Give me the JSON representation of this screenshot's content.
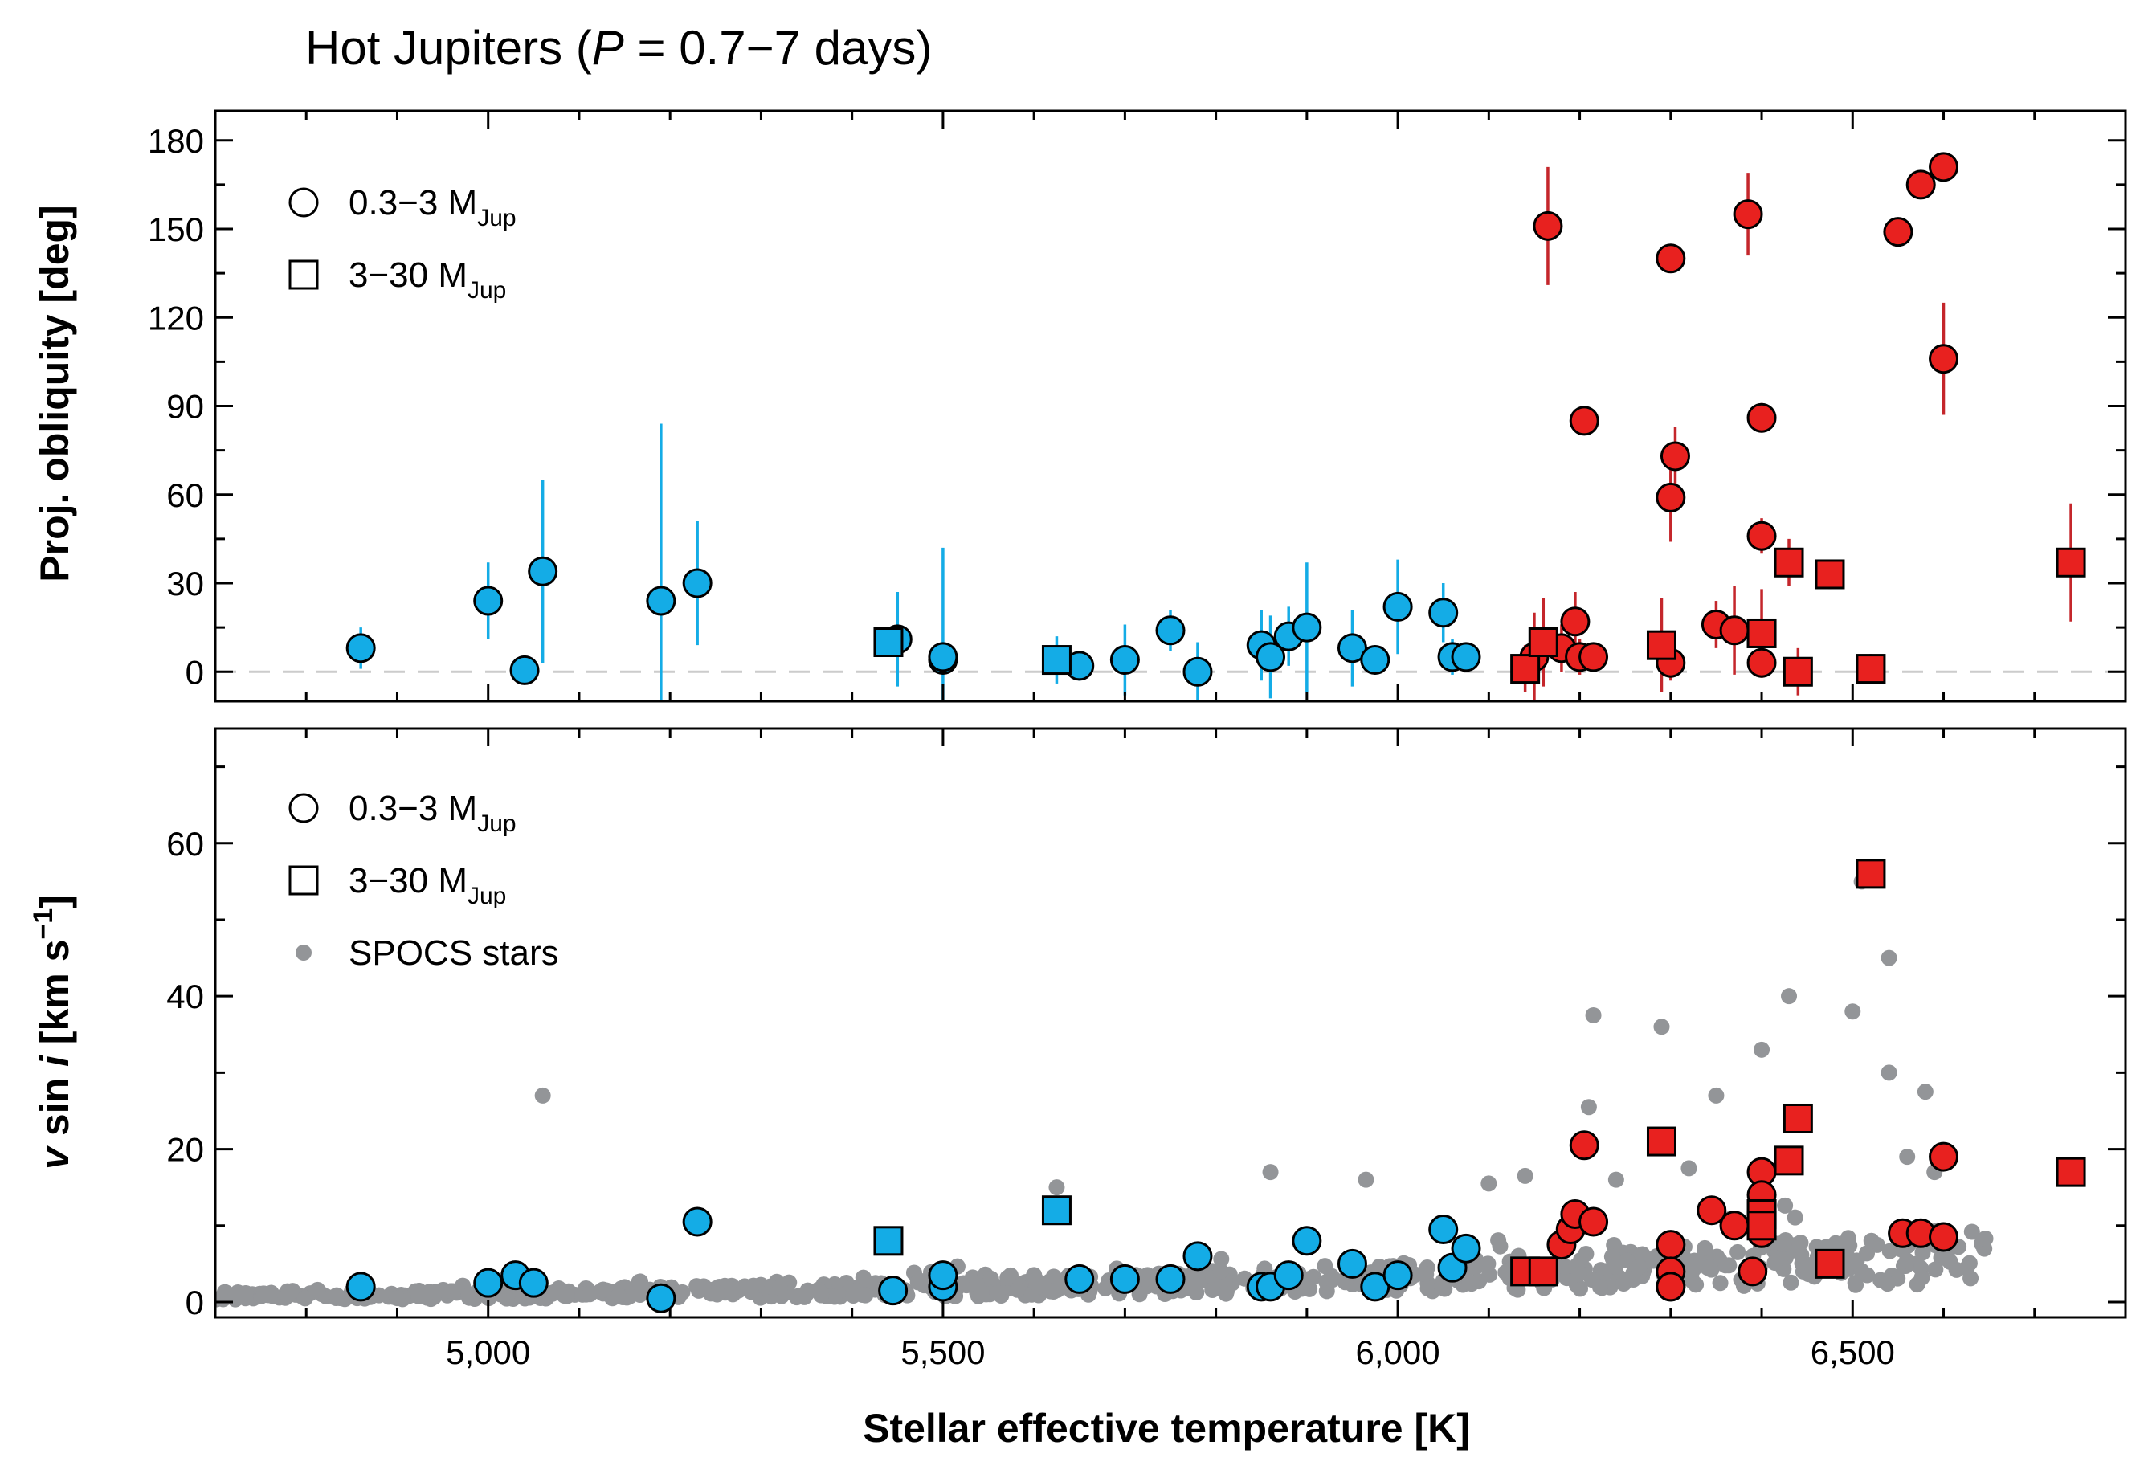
{
  "title": "Hot Jupiters (P = 0.7−7 days)",
  "title_parts": {
    "pre": "Hot Jupiters (",
    "var": "P",
    "post": " = 0.7−7 days)"
  },
  "colors": {
    "aligned": "#14ace6",
    "misaligned": "#e8211f",
    "aligned_err": "#14ace6",
    "misaligned_err": "#c4262b",
    "spocs": "#939598",
    "zero_line": "#cccccc",
    "frame": "#000000"
  },
  "legend_top": [
    {
      "marker": "circle",
      "label": "0.3−3 M",
      "sub": "Jup"
    },
    {
      "marker": "square",
      "label": "3−30 M",
      "sub": "Jup"
    }
  ],
  "legend_bottom": [
    {
      "marker": "circle",
      "label": "0.3−3 M",
      "sub": "Jup"
    },
    {
      "marker": "square",
      "label": "3−30 M",
      "sub": "Jup"
    },
    {
      "marker": "dot",
      "label": "SPOCS stars",
      "sub": ""
    }
  ],
  "chart_data": [
    {
      "type": "scatter",
      "panel": "top",
      "title": "Hot Jupiters (P = 0.7−7 days)",
      "xlabel": "",
      "ylabel": "Proj. obliquity [deg]",
      "xlim": [
        4700,
        6800
      ],
      "ylim": [
        -10,
        190
      ],
      "yticks": [
        0,
        30,
        60,
        90,
        120,
        150,
        180
      ],
      "ytick_labels": [
        "0",
        "30",
        "60",
        "90",
        "120",
        "150",
        "180"
      ],
      "xticks": [
        5000,
        5500,
        6000,
        6500
      ],
      "reference_line": 0,
      "series": [
        {
          "name": "0.3−3 M_Jup",
          "marker": "circle",
          "points": [
            [
              4860,
              8,
              7
            ],
            [
              5000,
              24,
              13
            ],
            [
              5040,
              0.5,
              3
            ],
            [
              5060,
              34,
              31
            ],
            [
              5190,
              24,
              60
            ],
            [
              5230,
              30,
              21
            ],
            [
              5450,
              11,
              16
            ],
            [
              5500,
              4,
              38
            ],
            [
              5500,
              5,
              5
            ],
            [
              5650,
              2,
              5
            ],
            [
              5700,
              4,
              12
            ],
            [
              5750,
              14,
              7
            ],
            [
              5780,
              0,
              10
            ],
            [
              5850,
              9,
              12
            ],
            [
              5860,
              5,
              14
            ],
            [
              5880,
              12,
              10
            ],
            [
              5900,
              15,
              22
            ],
            [
              5950,
              8,
              13
            ],
            [
              5975,
              4,
              5
            ],
            [
              6000,
              22,
              16
            ],
            [
              6050,
              20,
              10
            ],
            [
              6060,
              5,
              6
            ],
            [
              6075,
              5,
              3
            ],
            [
              6150,
              5,
              15
            ],
            [
              6165,
              151,
              20
            ],
            [
              6180,
              8,
              8
            ],
            [
              6195,
              17,
              10
            ],
            [
              6200,
              5,
              6
            ],
            [
              6205,
              85,
              4
            ],
            [
              6215,
              5,
              5
            ],
            [
              6300,
              140,
              3
            ],
            [
              6300,
              59,
              15
            ],
            [
              6300,
              3,
              6
            ],
            [
              6305,
              73,
              10
            ],
            [
              6350,
              16,
              8
            ],
            [
              6370,
              14,
              15
            ],
            [
              6385,
              155,
              14
            ],
            [
              6400,
              86,
              5
            ],
            [
              6400,
              46,
              6
            ],
            [
              6400,
              3,
              5
            ],
            [
              6550,
              149,
              3
            ],
            [
              6575,
              165,
              4
            ],
            [
              6600,
              171,
              3
            ],
            [
              6600,
              106,
              19
            ]
          ]
        },
        {
          "name": "3−30 M_Jup",
          "marker": "square",
          "points": [
            [
              5440,
              10,
              2
            ],
            [
              5625,
              4,
              8
            ],
            [
              6140,
              1,
              8
            ],
            [
              6160,
              10,
              15
            ],
            [
              6290,
              9,
              16
            ],
            [
              6400,
              13,
              15
            ],
            [
              6430,
              37,
              8
            ],
            [
              6440,
              0,
              8
            ],
            [
              6475,
              33,
              5
            ],
            [
              6520,
              1,
              5
            ],
            [
              6740,
              37,
              20
            ]
          ]
        }
      ],
      "coloring": "misaligned (red) when Teff > ~6100 K, aligned (blue) otherwise"
    },
    {
      "type": "scatter",
      "panel": "bottom",
      "xlabel": "Stellar effective temperature [K]",
      "ylabel": "v sin i [km s⁻¹]",
      "xlim": [
        4700,
        6800
      ],
      "ylim": [
        -2,
        75
      ],
      "yticks": [
        0,
        20,
        40,
        60
      ],
      "ytick_labels": [
        "0",
        "20",
        "40",
        "60"
      ],
      "xticks": [
        5000,
        5500,
        6000,
        6500
      ],
      "xtick_labels": [
        "5,000",
        "5,500",
        "6,000",
        "6,500"
      ],
      "series": [
        {
          "name": "0.3−3 M_Jup",
          "marker": "circle",
          "points": [
            [
              4860,
              2
            ],
            [
              5000,
              2.5
            ],
            [
              5030,
              3.5
            ],
            [
              5050,
              2.5
            ],
            [
              5190,
              0.5
            ],
            [
              5230,
              10.5
            ],
            [
              5445,
              1.5
            ],
            [
              5500,
              2
            ],
            [
              5500,
              3.5
            ],
            [
              5650,
              3
            ],
            [
              5700,
              3
            ],
            [
              5750,
              3
            ],
            [
              5780,
              6
            ],
            [
              5850,
              2
            ],
            [
              5860,
              2
            ],
            [
              5880,
              3.5
            ],
            [
              5900,
              8
            ],
            [
              5950,
              5
            ],
            [
              5975,
              2
            ],
            [
              6000,
              3.5
            ],
            [
              6050,
              9.5
            ],
            [
              6060,
              4.5
            ],
            [
              6075,
              7
            ],
            [
              6180,
              7.5
            ],
            [
              6190,
              9.5
            ],
            [
              6195,
              11.5
            ],
            [
              6205,
              20.5
            ],
            [
              6215,
              10.5
            ],
            [
              6300,
              7.5
            ],
            [
              6300,
              4
            ],
            [
              6300,
              2
            ],
            [
              6300,
              2
            ],
            [
              6345,
              12
            ],
            [
              6370,
              10
            ],
            [
              6390,
              4
            ],
            [
              6400,
              17
            ],
            [
              6400,
              14
            ],
            [
              6400,
              9
            ],
            [
              6555,
              9
            ],
            [
              6575,
              9
            ],
            [
              6600,
              19
            ],
            [
              6600,
              8.5
            ]
          ]
        },
        {
          "name": "3−30 M_Jup",
          "marker": "square",
          "points": [
            [
              5440,
              8
            ],
            [
              5625,
              12
            ],
            [
              6140,
              4
            ],
            [
              6160,
              4
            ],
            [
              6290,
              21
            ],
            [
              6400,
              11.5
            ],
            [
              6400,
              10
            ],
            [
              6430,
              18.5
            ],
            [
              6440,
              24
            ],
            [
              6475,
              5
            ],
            [
              6520,
              56
            ],
            [
              6740,
              17
            ]
          ]
        },
        {
          "name": "SPOCS stars",
          "marker": "dot",
          "points": [
            [
              5060,
              27
            ],
            [
              5625,
              15
            ],
            [
              6215,
              37.5
            ],
            [
              6290,
              36
            ],
            [
              6430,
              40
            ],
            [
              6510,
              55
            ],
            [
              6540,
              45
            ],
            [
              6500,
              38
            ],
            [
              6400,
              33
            ],
            [
              6540,
              30
            ],
            [
              6580,
              27.5
            ],
            [
              6350,
              27
            ],
            [
              6210,
              25.5
            ],
            [
              6560,
              19
            ],
            [
              6140,
              16.5
            ],
            [
              6590,
              17
            ],
            [
              6240,
              16
            ],
            [
              5860,
              17
            ],
            [
              5965,
              16
            ],
            [
              6100,
              15.5
            ],
            [
              6320,
              17.5
            ]
          ],
          "note": "plus a dense band of several hundred stars with v sin i 0–10 km/s across 4700–6650 K"
        }
      ]
    }
  ]
}
